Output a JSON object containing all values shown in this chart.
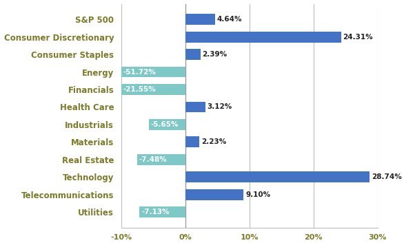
{
  "categories": [
    "S&P 500",
    "Consumer Discretionary",
    "Consumer Staples",
    "Energy",
    "Financials",
    "Health Care",
    "Industrials",
    "Materials",
    "Real Estate",
    "Technology",
    "Telecommunications",
    "Utilities"
  ],
  "values": [
    4.64,
    24.31,
    2.39,
    -51.72,
    -21.55,
    3.12,
    -5.65,
    2.23,
    -7.48,
    28.74,
    9.1,
    -7.13
  ],
  "bar_colors_positive": "#4472C4",
  "bar_colors_negative": "#7EC8C8",
  "ylabel_color": "#7B7B2A",
  "xlim": [
    -10,
    30
  ],
  "xticks": [
    -10,
    0,
    10,
    20,
    30
  ],
  "xtick_labels": [
    "-10%",
    "0%",
    "10%",
    "20%",
    "30%"
  ],
  "background_color": "#FFFFFF",
  "grid_color": "#BBBBBB",
  "xtick_color": "#7B7B2A"
}
